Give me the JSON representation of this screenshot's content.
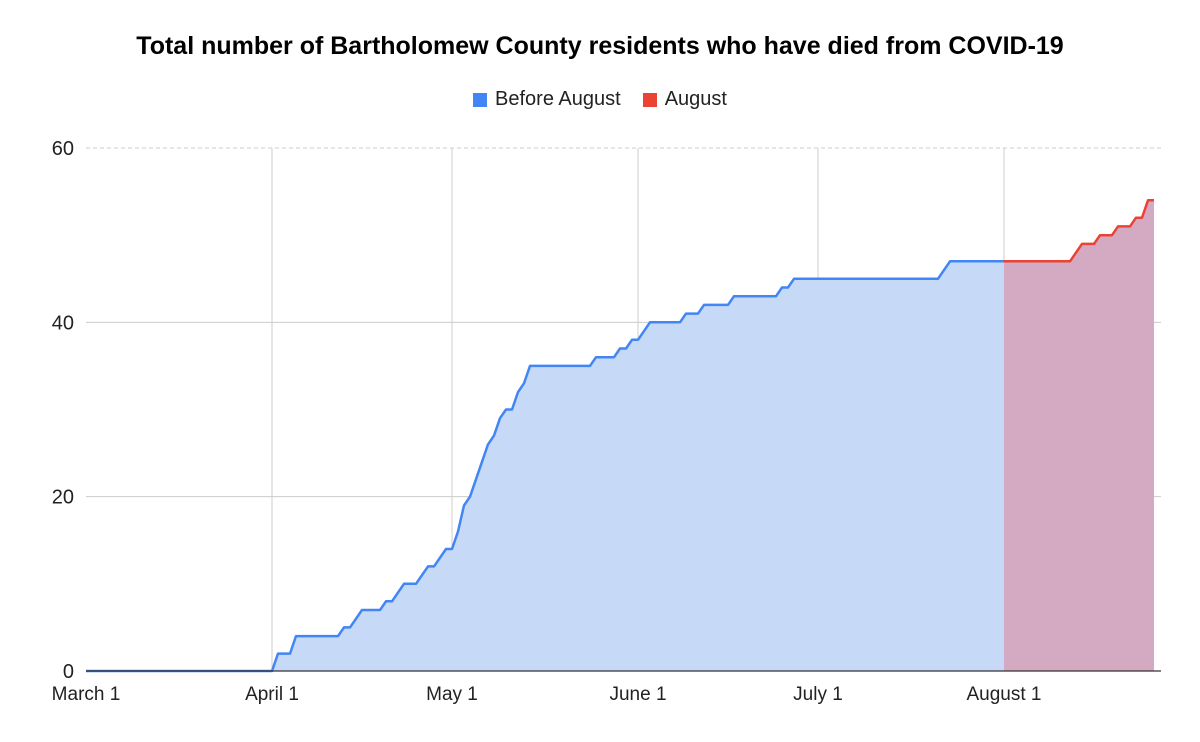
{
  "chart_data": {
    "type": "area",
    "title": "Total number of Bartholomew County residents who have died from COVID-19",
    "legend_position": "top-center",
    "grid": true,
    "x_axis": {
      "type": "date",
      "range": [
        "2020-03-01",
        "2020-08-27"
      ],
      "tick_labels": [
        "March 1",
        "April 1",
        "May 1",
        "June 1",
        "July 1",
        "August 1"
      ],
      "tick_dates": [
        "2020-03-01",
        "2020-04-01",
        "2020-05-01",
        "2020-06-01",
        "2020-07-01",
        "2020-08-01"
      ]
    },
    "y_axis": {
      "range": [
        0,
        60
      ],
      "ticks": [
        0,
        20,
        40,
        60
      ]
    },
    "series": [
      {
        "name": "Before August",
        "color": "#4285F4",
        "fill": "#C6DAF8",
        "points": [
          [
            "2020-03-01",
            0
          ],
          [
            "2020-04-01",
            0
          ],
          [
            "2020-04-02",
            2
          ],
          [
            "2020-04-04",
            2
          ],
          [
            "2020-04-05",
            4
          ],
          [
            "2020-04-12",
            4
          ],
          [
            "2020-04-13",
            5
          ],
          [
            "2020-04-14",
            5
          ],
          [
            "2020-04-16",
            7
          ],
          [
            "2020-04-19",
            7
          ],
          [
            "2020-04-20",
            8
          ],
          [
            "2020-04-21",
            8
          ],
          [
            "2020-04-23",
            10
          ],
          [
            "2020-04-25",
            10
          ],
          [
            "2020-04-27",
            12
          ],
          [
            "2020-04-28",
            12
          ],
          [
            "2020-04-30",
            14
          ],
          [
            "2020-05-01",
            14
          ],
          [
            "2020-05-02",
            16
          ],
          [
            "2020-05-03",
            19
          ],
          [
            "2020-05-04",
            20
          ],
          [
            "2020-05-06",
            24
          ],
          [
            "2020-05-07",
            26
          ],
          [
            "2020-05-08",
            27
          ],
          [
            "2020-05-09",
            29
          ],
          [
            "2020-05-10",
            30
          ],
          [
            "2020-05-11",
            30
          ],
          [
            "2020-05-12",
            32
          ],
          [
            "2020-05-13",
            33
          ],
          [
            "2020-05-14",
            35
          ],
          [
            "2020-05-24",
            35
          ],
          [
            "2020-05-25",
            36
          ],
          [
            "2020-05-28",
            36
          ],
          [
            "2020-05-29",
            37
          ],
          [
            "2020-05-30",
            37
          ],
          [
            "2020-05-31",
            38
          ],
          [
            "2020-06-01",
            38
          ],
          [
            "2020-06-03",
            40
          ],
          [
            "2020-06-08",
            40
          ],
          [
            "2020-06-09",
            41
          ],
          [
            "2020-06-11",
            41
          ],
          [
            "2020-06-12",
            42
          ],
          [
            "2020-06-16",
            42
          ],
          [
            "2020-06-17",
            43
          ],
          [
            "2020-06-24",
            43
          ],
          [
            "2020-06-25",
            44
          ],
          [
            "2020-06-26",
            44
          ],
          [
            "2020-06-27",
            45
          ],
          [
            "2020-07-21",
            45
          ],
          [
            "2020-07-23",
            47
          ],
          [
            "2020-08-01",
            47
          ]
        ]
      },
      {
        "name": "August",
        "color": "#EA4335",
        "fill": "#D4AAC2",
        "points": [
          [
            "2020-08-01",
            47
          ],
          [
            "2020-08-12",
            47
          ],
          [
            "2020-08-14",
            49
          ],
          [
            "2020-08-16",
            49
          ],
          [
            "2020-08-17",
            50
          ],
          [
            "2020-08-19",
            50
          ],
          [
            "2020-08-20",
            51
          ],
          [
            "2020-08-22",
            51
          ],
          [
            "2020-08-23",
            52
          ],
          [
            "2020-08-24",
            52
          ],
          [
            "2020-08-25",
            54
          ],
          [
            "2020-08-26",
            54
          ]
        ]
      }
    ]
  }
}
